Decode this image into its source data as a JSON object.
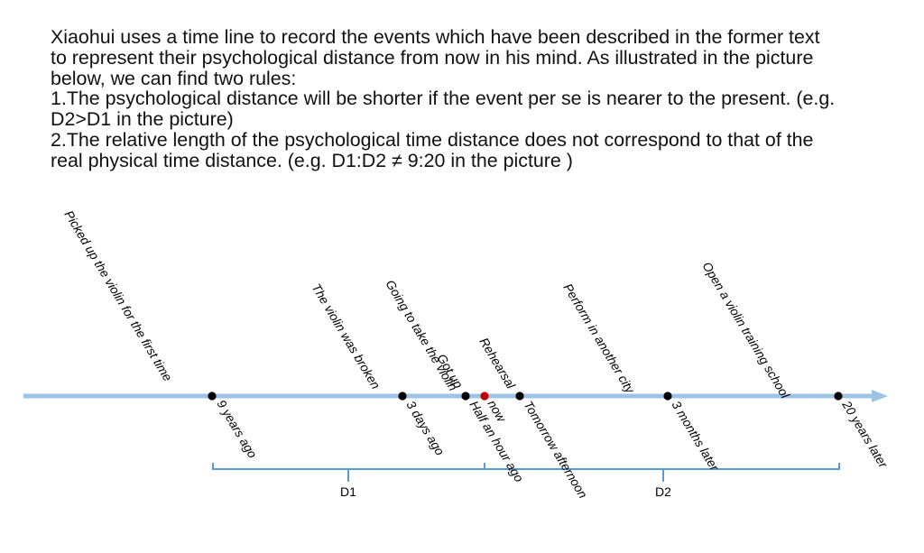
{
  "description": {
    "lines": [
      "Xiaohui uses a time line to record the events which have been described in the former text",
      "to represent their psychological distance from now in his mind. As illustrated in the picture",
      "below, we can find two rules:",
      "1.The psychological distance will be shorter if the event per se is nearer to the present. (e.g.",
      "D2>D1 in the picture)",
      "2.The relative length of the psychological time distance does not correspond to that of the",
      "real physical time distance. (e.g. D1:D2 ≠ 9:20 in the picture )"
    ]
  },
  "timeline": {
    "colors": {
      "axis": "#9dc3e6",
      "brace": "#5b9bd5",
      "dot": "#000000",
      "now_dot": "#c00000"
    },
    "events": [
      {
        "id": "first-violin",
        "event": "Picked  up the violin for the first time",
        "time": "9 years ago"
      },
      {
        "id": "violin-broken",
        "event": "The violin was broken",
        "time": "3 days ago"
      },
      {
        "id": "take-violin",
        "event": "Going to take the violin",
        "time": "Half an hour ago",
        "extra": "Got up"
      },
      {
        "id": "now",
        "event": "",
        "time": "now",
        "is_now": true
      },
      {
        "id": "rehearsal",
        "event": "Rehearsal",
        "time": "Tomorrow afternoon"
      },
      {
        "id": "other-city",
        "event": "Perform in another city",
        "time": "3 months later"
      },
      {
        "id": "training-school",
        "event": "Open a violin training school",
        "time": "20 years later"
      }
    ],
    "distances": [
      {
        "id": "d1",
        "label": "D1"
      },
      {
        "id": "d2",
        "label": "D2"
      }
    ]
  }
}
